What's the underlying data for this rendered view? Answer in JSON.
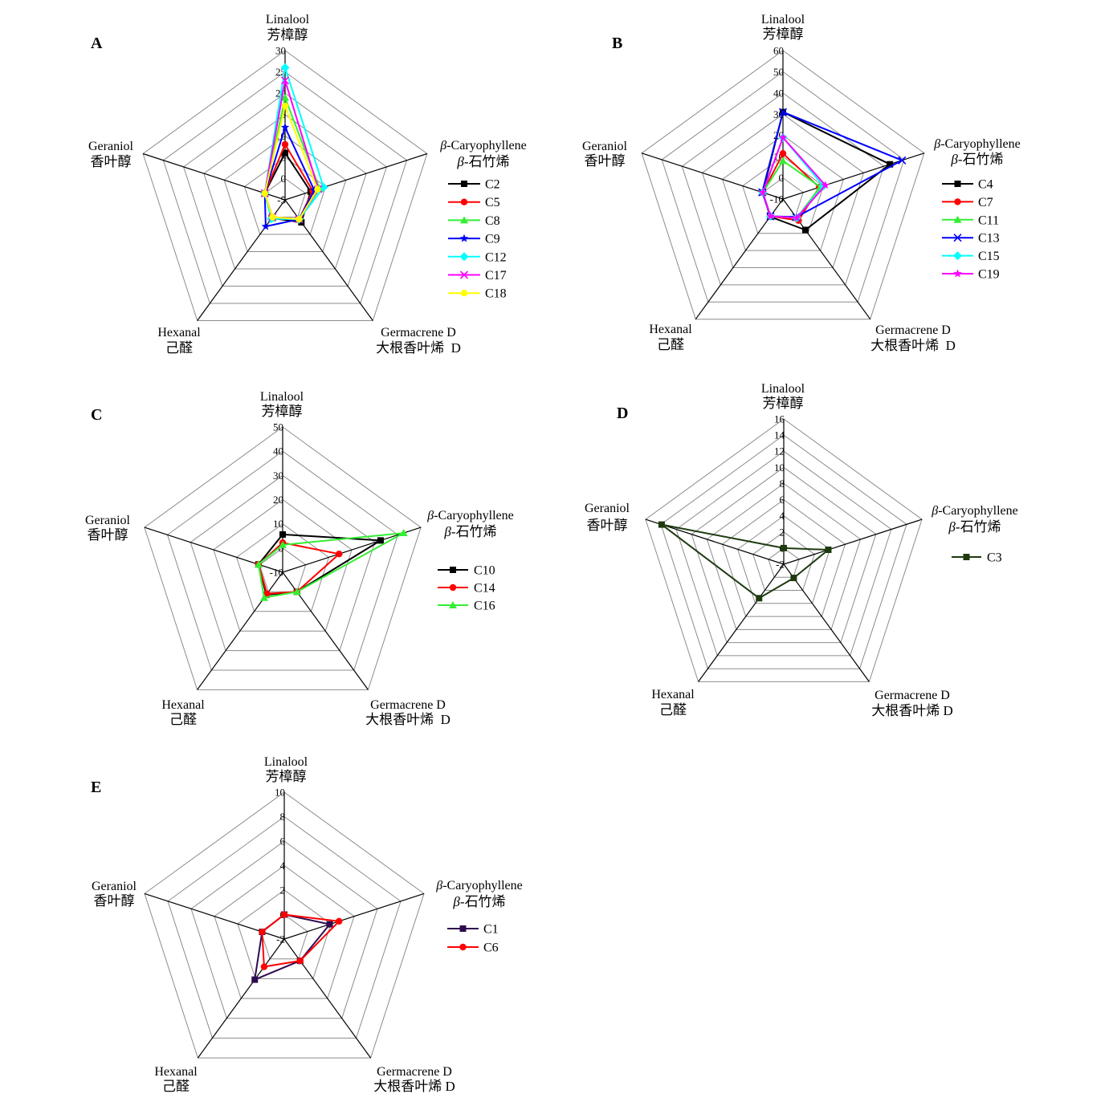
{
  "chart_data": [
    {
      "label": "A",
      "type": "radar",
      "legend": "right",
      "range": [
        -5,
        30
      ],
      "ticks": [
        -5,
        0,
        5,
        10,
        15,
        20,
        25,
        30
      ],
      "axes": [
        {
          "en": "Linalool",
          "cn": "芳樟醇"
        },
        {
          "en": "β-Caryophyllene",
          "cn": "β-石竹烯"
        },
        {
          "en": "Germacrene D",
          "cn": "大根香叶烯  D"
        },
        {
          "en": "Hexanal",
          "cn": "己醛"
        },
        {
          "en": "Geraniol",
          "cn": "香叶醇"
        }
      ],
      "series": [
        {
          "name": "C2",
          "color": "#000000",
          "marker": "square",
          "values": [
            6,
            1.3,
            1.5,
            0.3,
            0
          ]
        },
        {
          "name": "C5",
          "color": "#ff0000",
          "marker": "circle",
          "values": [
            8,
            1.8,
            0.6,
            0,
            0
          ]
        },
        {
          "name": "C8",
          "color": "#33ee33",
          "marker": "triangle",
          "values": [
            19,
            3.5,
            0.6,
            0.3,
            0
          ]
        },
        {
          "name": "C9",
          "color": "#0000ff",
          "marker": "star",
          "values": [
            12,
            2.2,
            0.6,
            2.7,
            0
          ]
        },
        {
          "name": "C12",
          "color": "#00ffff",
          "marker": "diamond",
          "values": [
            26,
            4.5,
            0.6,
            0.5,
            0
          ]
        },
        {
          "name": "C17",
          "color": "#ff00ff",
          "marker": "x",
          "values": [
            23,
            3.2,
            0.6,
            0,
            0
          ]
        },
        {
          "name": "C18",
          "color": "#ffff00",
          "marker": "circle",
          "values": [
            17,
            3.0,
            0.6,
            0,
            0
          ]
        }
      ]
    },
    {
      "label": "B",
      "type": "radar",
      "legend": "right",
      "range": [
        -10,
        60
      ],
      "ticks": [
        -10,
        0,
        10,
        20,
        30,
        40,
        50,
        60
      ],
      "axes": [
        {
          "en": "Linalool",
          "cn": "芳樟醇"
        },
        {
          "en": "β-Caryophyllene",
          "cn": "β-石竹烯"
        },
        {
          "en": "Germacrene D",
          "cn": "大根香叶烯  D"
        },
        {
          "en": "Hexanal",
          "cn": "己醛"
        },
        {
          "en": "Geraniol",
          "cn": "香叶醇"
        }
      ],
      "series": [
        {
          "name": "C4",
          "color": "#000000",
          "marker": "square",
          "values": [
            31,
            43,
            8,
            0.3,
            0
          ]
        },
        {
          "name": "C7",
          "color": "#ff0000",
          "marker": "circle",
          "values": [
            11.5,
            8,
            2.5,
            0,
            0
          ]
        },
        {
          "name": "C11",
          "color": "#33ee33",
          "marker": "triangle",
          "values": [
            8,
            8.5,
            1,
            0,
            0
          ]
        },
        {
          "name": "C13",
          "color": "#0000ff",
          "marker": "x",
          "values": [
            31,
            49,
            0.5,
            0,
            0.3
          ]
        },
        {
          "name": "C15",
          "color": "#00ffff",
          "marker": "diamond",
          "values": [
            19,
            10,
            1,
            0,
            0
          ]
        },
        {
          "name": "C19",
          "color": "#ff00ff",
          "marker": "star",
          "values": [
            19,
            11,
            1,
            0,
            0
          ]
        }
      ]
    },
    {
      "label": "C",
      "type": "radar",
      "legend": "right",
      "range": [
        -10,
        50
      ],
      "ticks": [
        -10,
        0,
        10,
        20,
        30,
        40,
        50
      ],
      "axes": [
        {
          "en": "Linalool",
          "cn": "芳樟醇"
        },
        {
          "en": "β-Caryophyllene",
          "cn": "β-石竹烯"
        },
        {
          "en": "Germacrene D",
          "cn": "大根香叶烯  D"
        },
        {
          "en": "Hexanal",
          "cn": "己醛"
        },
        {
          "en": "Geraniol",
          "cn": "香叶醇"
        }
      ],
      "series": [
        {
          "name": "C10",
          "color": "#000000",
          "marker": "square",
          "values": [
            5.6,
            32.5,
            0,
            1.5,
            0.5
          ]
        },
        {
          "name": "C14",
          "color": "#ff0000",
          "marker": "circle",
          "values": [
            2.2,
            14.5,
            0,
            1.0,
            0.5
          ]
        },
        {
          "name": "C16",
          "color": "#33ee33",
          "marker": "triangle",
          "values": [
            1.3,
            42.5,
            0,
            3.0,
            0.5
          ]
        }
      ]
    },
    {
      "label": "D",
      "type": "radar",
      "legend": "right",
      "range": [
        -2,
        16
      ],
      "ticks": [
        -2,
        0,
        2,
        4,
        6,
        8,
        10,
        12,
        14,
        16
      ],
      "axes": [
        {
          "en": "Linalool",
          "cn": "芳樟醇"
        },
        {
          "en": "β-Caryophyllene",
          "cn": "β-石竹烯"
        },
        {
          "en": "Germacrene D",
          "cn": "大根香叶烯 D"
        },
        {
          "en": "Hexanal",
          "cn": "己醛"
        },
        {
          "en": "Geraniol",
          "cn": "香叶醇"
        }
      ],
      "series": [
        {
          "name": "C3",
          "color": "#1f3a0f",
          "marker": "square",
          "values": [
            0,
            3.8,
            0.1,
            3.2,
            13.9
          ]
        }
      ]
    },
    {
      "label": "E",
      "type": "radar",
      "legend": "right",
      "range": [
        -2,
        10
      ],
      "ticks": [
        -2,
        0,
        2,
        4,
        6,
        8,
        10
      ],
      "axes": [
        {
          "en": "Linalool",
          "cn": "芳樟醇"
        },
        {
          "en": "β-Caryophyllene",
          "cn": "β-石竹烯"
        },
        {
          "en": "Germacrene D",
          "cn": "大根香叶烯 D"
        },
        {
          "en": "Hexanal",
          "cn": "己醛"
        },
        {
          "en": "Geraniol",
          "cn": "香叶醇"
        }
      ],
      "series": [
        {
          "name": "C1",
          "color": "#2e0b4f",
          "marker": "square",
          "values": [
            0,
            1.9,
            0.2,
            2.1,
            -0.1
          ]
        },
        {
          "name": "C6",
          "color": "#ff0000",
          "marker": "circle",
          "values": [
            0,
            2.7,
            0.2,
            0.8,
            -0.1
          ]
        }
      ]
    }
  ]
}
